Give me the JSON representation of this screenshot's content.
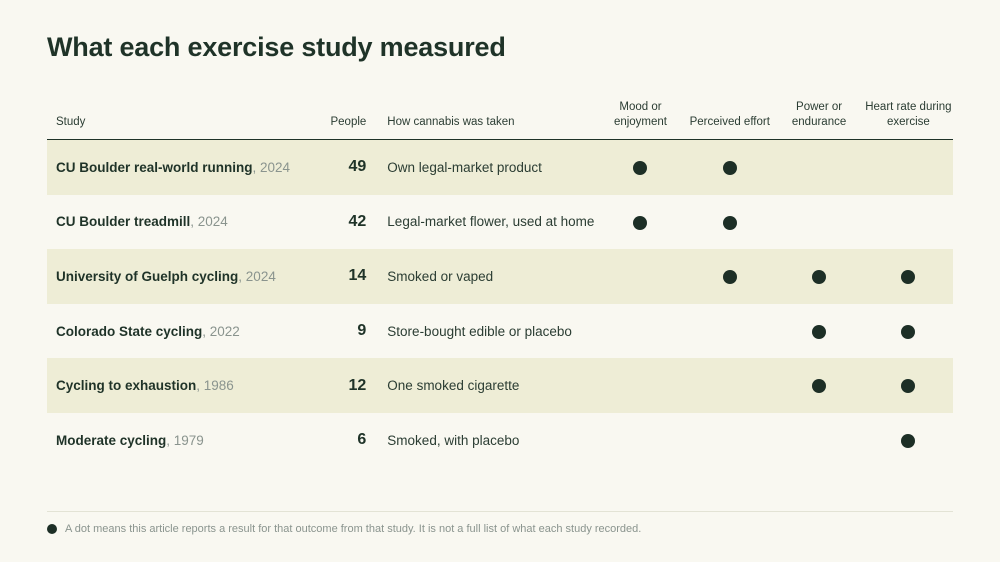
{
  "title": "What each exercise study measured",
  "headers": {
    "study": "Study",
    "people": "People",
    "method": "How cannabis was taken",
    "outcomes": [
      "Mood or enjoyment",
      "Perceived effort",
      "Power or endurance",
      "Heart rate during exercise"
    ]
  },
  "rows": [
    {
      "name": "CU Boulder real-world running",
      "year": ", 2024",
      "people": "49",
      "method": "Own legal-market product",
      "outcomes": [
        true,
        true,
        false,
        false
      ]
    },
    {
      "name": "CU Boulder treadmill",
      "year": ", 2024",
      "people": "42",
      "method": "Legal-market flower, used at home",
      "outcomes": [
        true,
        true,
        false,
        false
      ]
    },
    {
      "name": "University of Guelph cycling",
      "year": ", 2024",
      "people": "14",
      "method": "Smoked or vaped",
      "outcomes": [
        false,
        true,
        true,
        true
      ]
    },
    {
      "name": "Colorado State cycling",
      "year": ", 2022",
      "people": "9",
      "method": "Store-bought edible or placebo",
      "outcomes": [
        false,
        false,
        true,
        true
      ]
    },
    {
      "name": "Cycling to exhaustion",
      "year": ", 1986",
      "people": "12",
      "method": "One smoked cigarette",
      "outcomes": [
        false,
        false,
        true,
        true
      ]
    },
    {
      "name": "Moderate cycling",
      "year": ", 1979",
      "people": "6",
      "method": "Smoked, with placebo",
      "outcomes": [
        false,
        false,
        false,
        true
      ]
    }
  ],
  "footnote": "A dot means this article reports a result for that outcome from that study. It is not a full list of what each study recorded.",
  "icons": {
    "result_marker": "dot-icon"
  },
  "colors": {
    "dot": "#1d2f26",
    "shade": "#eeedd6",
    "background": "#f9f8f1"
  }
}
